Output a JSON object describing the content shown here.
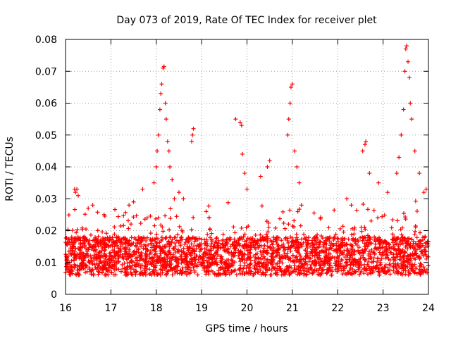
{
  "chart_data": {
    "type": "scatter",
    "title": "Day 073 of 2019, Rate Of TEC Index for receiver plet",
    "xlabel": "GPS time / hours",
    "ylabel": "ROTI / TECUs",
    "xlim": [
      16,
      24
    ],
    "ylim": [
      0,
      0.08
    ],
    "xticks": [
      "16",
      "17",
      "18",
      "19",
      "20",
      "21",
      "22",
      "23",
      "24"
    ],
    "yticks": [
      "0",
      "0.01",
      "0.02",
      "0.03",
      "0.04",
      "0.05",
      "0.06",
      "0.07",
      "0.08"
    ],
    "grid": true,
    "marker": "+",
    "color": "#ff0000",
    "series": [
      {
        "name": "ROTI",
        "points": [
          [
            16.2,
            0.033
          ],
          [
            16.22,
            0.032
          ],
          [
            16.25,
            0.033
          ],
          [
            16.28,
            0.031
          ],
          [
            16.5,
            0.027
          ],
          [
            16.6,
            0.028
          ],
          [
            16.85,
            0.025
          ],
          [
            17.4,
            0.028
          ],
          [
            17.5,
            0.029
          ],
          [
            17.7,
            0.033
          ],
          [
            17.95,
            0.035
          ],
          [
            18.0,
            0.04
          ],
          [
            18.02,
            0.045
          ],
          [
            18.05,
            0.05
          ],
          [
            18.08,
            0.058
          ],
          [
            18.1,
            0.063
          ],
          [
            18.12,
            0.066
          ],
          [
            18.15,
            0.071
          ],
          [
            18.17,
            0.0715
          ],
          [
            18.2,
            0.06
          ],
          [
            18.22,
            0.055
          ],
          [
            18.25,
            0.048
          ],
          [
            18.28,
            0.045
          ],
          [
            18.3,
            0.04
          ],
          [
            18.35,
            0.036
          ],
          [
            18.4,
            0.03
          ],
          [
            18.5,
            0.032
          ],
          [
            18.6,
            0.03
          ],
          [
            18.78,
            0.048
          ],
          [
            18.8,
            0.05
          ],
          [
            18.82,
            0.052
          ],
          [
            19.1,
            0.026
          ],
          [
            19.75,
            0.055
          ],
          [
            19.85,
            0.054
          ],
          [
            19.88,
            0.053
          ],
          [
            19.9,
            0.044
          ],
          [
            19.95,
            0.038
          ],
          [
            20.0,
            0.033
          ],
          [
            20.3,
            0.037
          ],
          [
            20.45,
            0.04
          ],
          [
            20.5,
            0.042
          ],
          [
            20.9,
            0.05
          ],
          [
            20.92,
            0.055
          ],
          [
            20.95,
            0.06
          ],
          [
            20.97,
            0.065
          ],
          [
            21.0,
            0.066
          ],
          [
            21.05,
            0.045
          ],
          [
            21.1,
            0.04
          ],
          [
            21.15,
            0.035
          ],
          [
            21.2,
            0.028
          ],
          [
            22.2,
            0.03
          ],
          [
            22.3,
            0.028
          ],
          [
            22.55,
            0.045
          ],
          [
            22.6,
            0.047
          ],
          [
            22.62,
            0.048
          ],
          [
            22.7,
            0.038
          ],
          [
            22.9,
            0.035
          ],
          [
            23.1,
            0.032
          ],
          [
            23.3,
            0.038
          ],
          [
            23.35,
            0.043
          ],
          [
            23.4,
            0.05
          ],
          [
            23.45,
            0.058
          ],
          [
            23.48,
            0.07
          ],
          [
            23.5,
            0.077
          ],
          [
            23.52,
            0.078
          ],
          [
            23.55,
            0.073
          ],
          [
            23.58,
            0.068
          ],
          [
            23.6,
            0.06
          ],
          [
            23.63,
            0.055
          ],
          [
            23.7,
            0.045
          ],
          [
            23.8,
            0.038
          ],
          [
            23.9,
            0.032
          ],
          [
            23.95,
            0.033
          ]
        ]
      }
    ]
  }
}
